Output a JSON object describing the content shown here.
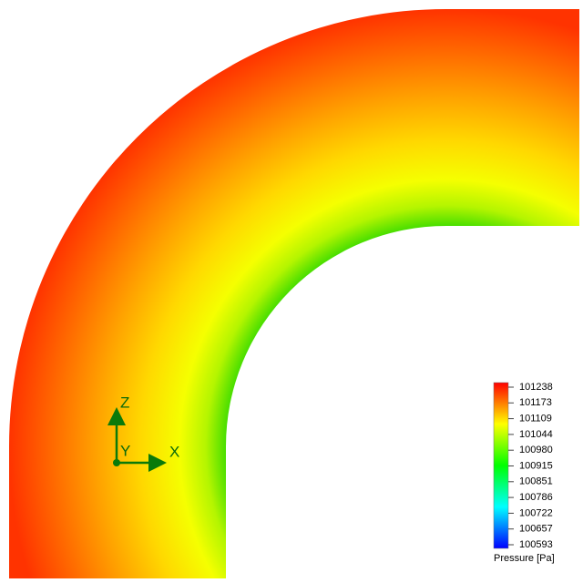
{
  "colorbar": {
    "title": "Pressure [Pa]",
    "ticks": [
      101238,
      101173,
      101109,
      101044,
      100980,
      100915,
      100851,
      100786,
      100722,
      100657,
      100593
    ]
  },
  "triad": {
    "z": "Z",
    "y": "Y",
    "x": "X"
  }
}
